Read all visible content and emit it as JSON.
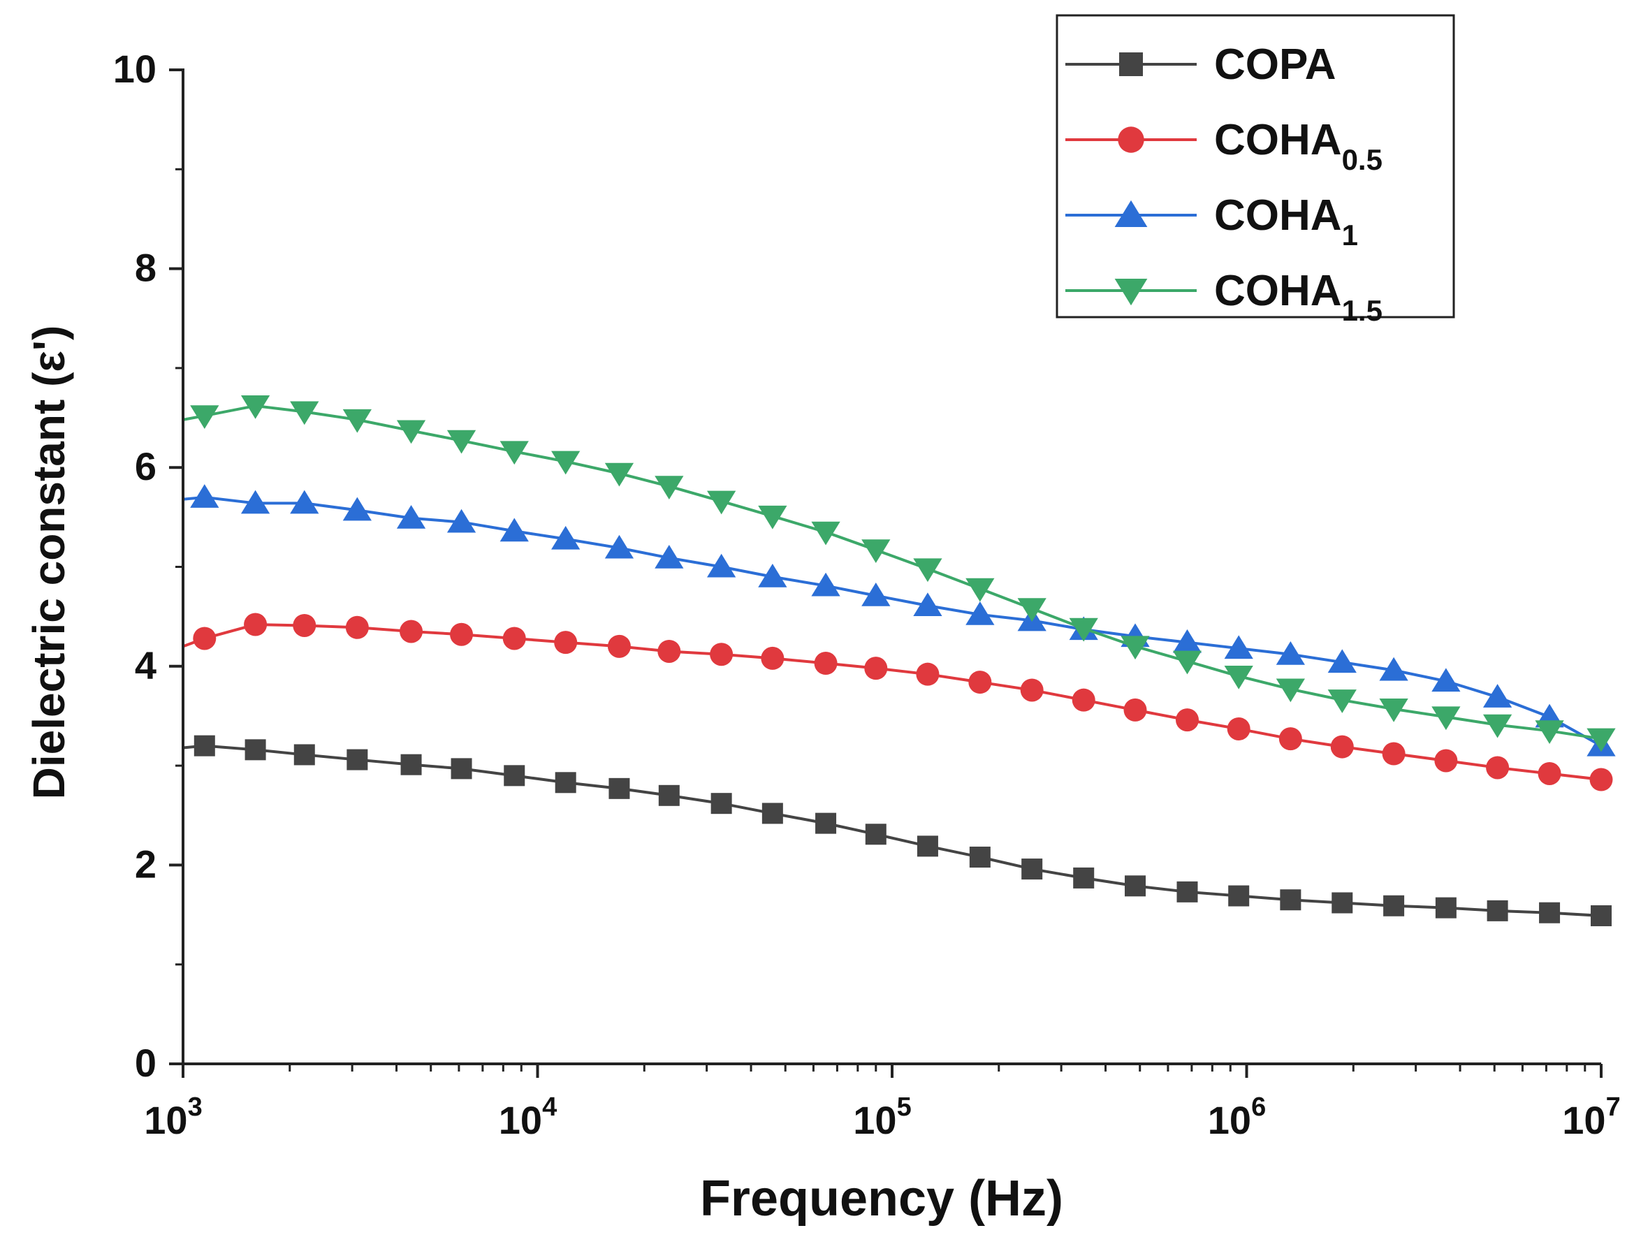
{
  "chart_data": {
    "type": "line",
    "title": "",
    "xlabel": "Frequency (Hz)",
    "ylabel": "Dielectric constant (ε')",
    "xscale": "log",
    "xlim": [
      1000,
      10000000
    ],
    "ylim": [
      0,
      10
    ],
    "x_ticks": [
      {
        "base": "10",
        "exp": "3"
      },
      {
        "base": "10",
        "exp": "4"
      },
      {
        "base": "10",
        "exp": "5"
      },
      {
        "base": "10",
        "exp": "6"
      },
      {
        "base": "10",
        "exp": "7"
      }
    ],
    "y_ticks": [
      "0",
      "2",
      "4",
      "6",
      "8",
      "10"
    ],
    "legend_position": "top-right",
    "series": [
      {
        "name": "COPA",
        "label_main": "COPA",
        "label_sub": "",
        "color": "#444444",
        "marker": "square",
        "x": [
          1000,
          1150,
          1600,
          2200,
          3100,
          4400,
          6100,
          8600,
          12000,
          17000,
          23500,
          33000,
          46000,
          65000,
          90000,
          126000,
          177000,
          248000,
          347000,
          485000,
          680000,
          950000,
          1330000,
          1860000,
          2600000,
          3650000,
          5100000,
          7150000,
          10000000
        ],
        "values": [
          3.18,
          3.2,
          3.16,
          3.11,
          3.06,
          3.01,
          2.97,
          2.9,
          2.83,
          2.77,
          2.7,
          2.62,
          2.52,
          2.42,
          2.31,
          2.19,
          2.08,
          1.96,
          1.87,
          1.79,
          1.73,
          1.69,
          1.65,
          1.62,
          1.59,
          1.57,
          1.54,
          1.52,
          1.49
        ]
      },
      {
        "name": "COHA0.5",
        "label_main": "COHA",
        "label_sub": "0.5",
        "color": "#e0393e",
        "marker": "circle",
        "x": [
          1000,
          1150,
          1600,
          2200,
          3100,
          4400,
          6100,
          8600,
          12000,
          17000,
          23500,
          33000,
          46000,
          65000,
          90000,
          126000,
          177000,
          248000,
          347000,
          485000,
          680000,
          950000,
          1330000,
          1860000,
          2600000,
          3650000,
          5100000,
          7150000,
          10000000
        ],
        "values": [
          4.2,
          4.28,
          4.42,
          4.41,
          4.39,
          4.35,
          4.32,
          4.28,
          4.24,
          4.2,
          4.15,
          4.12,
          4.08,
          4.03,
          3.98,
          3.92,
          3.84,
          3.76,
          3.66,
          3.56,
          3.46,
          3.37,
          3.27,
          3.19,
          3.12,
          3.05,
          2.98,
          2.92,
          2.86
        ]
      },
      {
        "name": "COHA1",
        "label_main": "COHA",
        "label_sub": "1",
        "color": "#2b6ed6",
        "marker": "triangle-up",
        "x": [
          1000,
          1150,
          1600,
          2200,
          3100,
          4400,
          6100,
          8600,
          12000,
          17000,
          23500,
          33000,
          46000,
          65000,
          90000,
          126000,
          177000,
          248000,
          347000,
          485000,
          680000,
          950000,
          1330000,
          1860000,
          2600000,
          3650000,
          5100000,
          7150000,
          10000000
        ],
        "values": [
          5.68,
          5.7,
          5.64,
          5.64,
          5.57,
          5.49,
          5.45,
          5.36,
          5.28,
          5.19,
          5.09,
          5.0,
          4.9,
          4.81,
          4.71,
          4.61,
          4.52,
          4.46,
          4.37,
          4.3,
          4.24,
          4.18,
          4.12,
          4.04,
          3.96,
          3.85,
          3.69,
          3.49,
          3.2
        ]
      },
      {
        "name": "COHA1.5",
        "label_main": "COHA",
        "label_sub": "1.5",
        "color": "#3ca869",
        "marker": "triangle-down",
        "x": [
          1000,
          1150,
          1600,
          2200,
          3100,
          4400,
          6100,
          8600,
          12000,
          17000,
          23500,
          33000,
          46000,
          65000,
          90000,
          126000,
          177000,
          248000,
          347000,
          485000,
          680000,
          950000,
          1330000,
          1860000,
          2600000,
          3650000,
          5100000,
          7150000,
          10000000
        ],
        "values": [
          6.48,
          6.52,
          6.62,
          6.56,
          6.48,
          6.37,
          6.27,
          6.16,
          6.06,
          5.94,
          5.81,
          5.66,
          5.51,
          5.35,
          5.17,
          4.98,
          4.78,
          4.58,
          4.38,
          4.2,
          4.05,
          3.9,
          3.77,
          3.66,
          3.57,
          3.49,
          3.41,
          3.35,
          3.27
        ]
      }
    ]
  }
}
